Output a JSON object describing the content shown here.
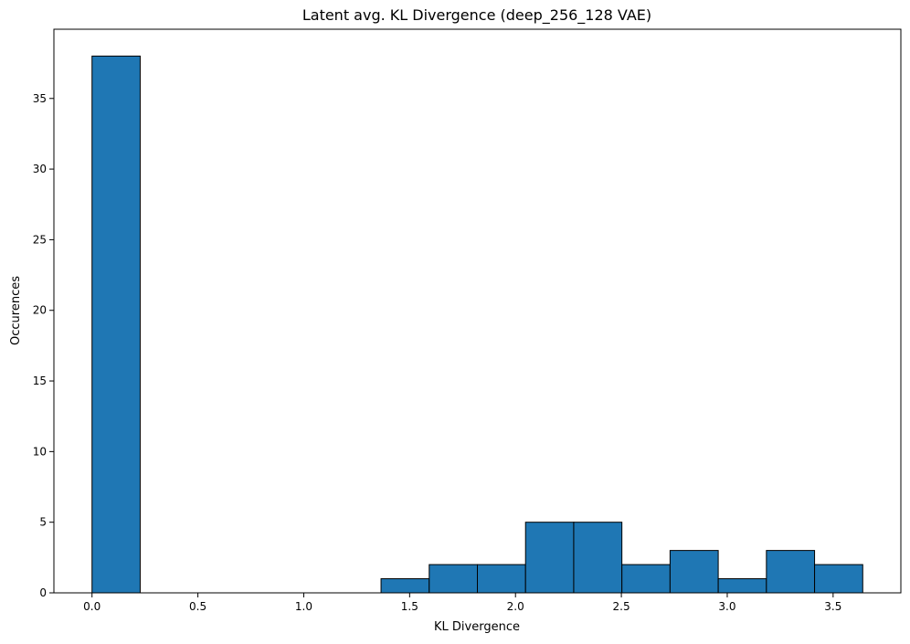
{
  "chart_data": {
    "type": "bar",
    "subtype": "histogram",
    "title": "Latent avg. KL Divergence (deep_256_128 VAE)",
    "xlabel": "KL Divergence",
    "ylabel": "Occurences",
    "xlim": [
      -0.18,
      3.82
    ],
    "ylim": [
      0,
      39.9
    ],
    "xticks": [
      0.0,
      0.5,
      1.0,
      1.5,
      2.0,
      2.5,
      3.0,
      3.5
    ],
    "xtick_labels": [
      "0.0",
      "0.5",
      "1.0",
      "1.5",
      "2.0",
      "2.5",
      "3.0",
      "3.5"
    ],
    "yticks": [
      0,
      5,
      10,
      15,
      20,
      25,
      30,
      35
    ],
    "ytick_labels": [
      "0",
      "5",
      "10",
      "15",
      "20",
      "25",
      "30",
      "35"
    ],
    "bin_edges": [
      0.0,
      0.2275,
      0.455,
      0.6825,
      0.91,
      1.1375,
      1.365,
      1.5925,
      1.82,
      2.0475,
      2.275,
      2.5025,
      2.73,
      2.9575,
      3.185,
      3.4125,
      3.64
    ],
    "values": [
      38,
      0,
      0,
      0,
      0,
      0,
      1,
      2,
      2,
      5,
      5,
      2,
      3,
      1,
      3,
      2
    ],
    "grid": false,
    "colors": {
      "bar_fill": "#1f77b4",
      "bar_edge": "#000000"
    }
  }
}
